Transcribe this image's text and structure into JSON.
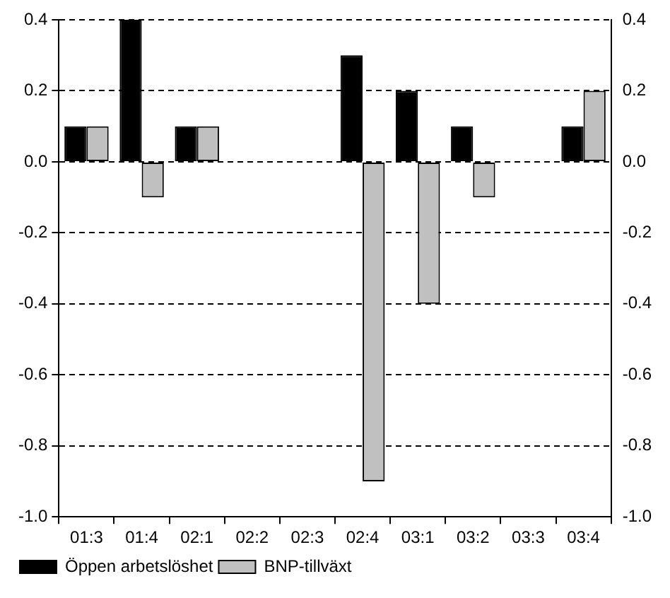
{
  "chart_data": {
    "type": "bar",
    "categories": [
      "01:3",
      "01:4",
      "02:1",
      "02:2",
      "02:3",
      "02:4",
      "03:1",
      "03:2",
      "03:3",
      "03:4"
    ],
    "series": [
      {
        "name": "Öppen arbetslöshet",
        "color": "#000000",
        "values": [
          0.1,
          0.4,
          0.1,
          0,
          0,
          0.3,
          0.2,
          0.1,
          0,
          0.1
        ]
      },
      {
        "name": "BNP-tillväxt",
        "color": "#c0c0c0",
        "values": [
          0.1,
          -0.1,
          0.1,
          0,
          0,
          -0.9,
          -0.4,
          -0.1,
          0,
          0.2
        ]
      }
    ],
    "ylim": [
      -1.0,
      0.4
    ],
    "yticks": [
      {
        "value": -1.0,
        "label": "-1.0"
      },
      -0.8,
      -0.6,
      -0.4,
      -0.2,
      {
        "value": 0,
        "label": "0.0"
      },
      0.2,
      0.4
    ],
    "y2lim": [
      -1.0,
      0.4
    ],
    "y2ticks": [
      {
        "value": -1.0,
        "label": "-1.0"
      },
      -0.8,
      -0.6,
      -0.4,
      -0.2,
      {
        "value": 0,
        "label": "0.0"
      },
      0.2,
      0.4
    ],
    "grid": "y",
    "legend": "bottom left"
  }
}
